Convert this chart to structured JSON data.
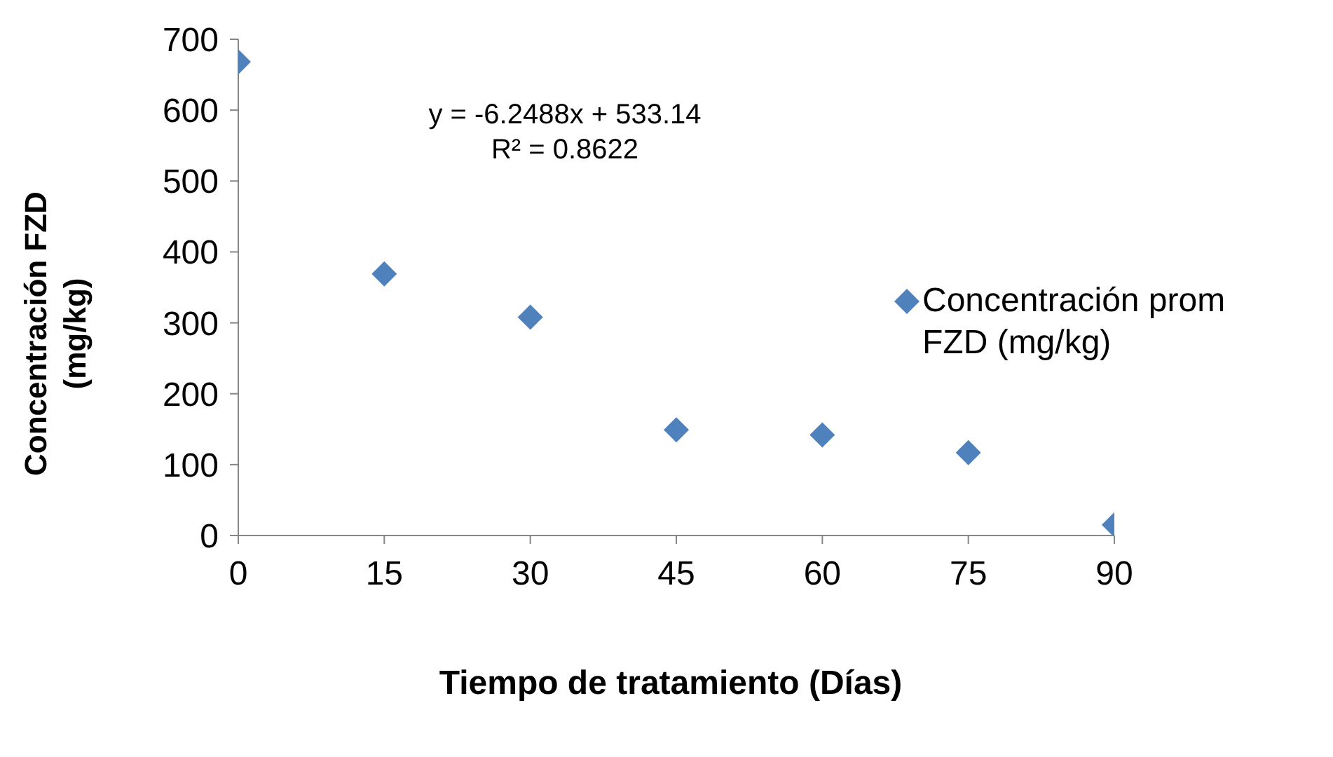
{
  "chart_data": {
    "type": "scatter",
    "xlabel": "Tiempo de tratamiento (Días)",
    "ylabel": "Concentración  FZD (mg/kg)",
    "x": [
      0,
      15,
      30,
      45,
      60,
      75,
      90
    ],
    "series": [
      {
        "name": "Concentración prom FZD (mg/kg)",
        "color": "#4f81bd",
        "values": [
          668,
          369,
          308,
          149,
          142,
          117,
          15
        ]
      }
    ],
    "xlim": [
      0,
      90
    ],
    "xticks": [
      0,
      15,
      30,
      45,
      60,
      75,
      90
    ],
    "ylim": [
      0,
      700
    ],
    "yticks": [
      0,
      100,
      200,
      300,
      400,
      500,
      600,
      700
    ],
    "annotations": [
      "y = -6.2488x + 533.14",
      "R² = 0.8622"
    ],
    "grid": false,
    "legend": "right",
    "marker": "diamond"
  }
}
